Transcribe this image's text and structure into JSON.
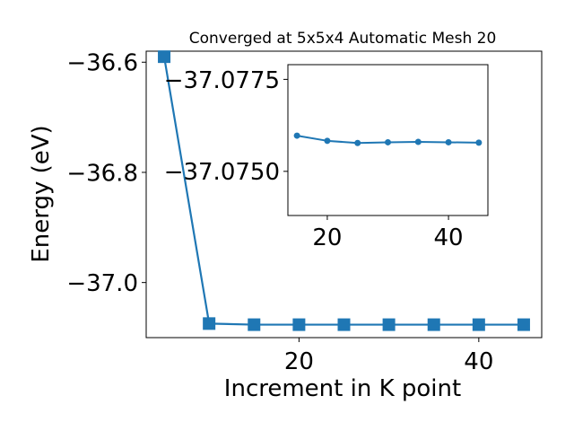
{
  "chart_data": [
    {
      "type": "line",
      "title": "Converged at 5x5x4 Automatic Mesh 20",
      "xlabel": "Increment in K point",
      "ylabel": "Energy (eV)",
      "xlim": [
        3,
        47
      ],
      "ylim": [
        -37.1,
        -36.58
      ],
      "xticks": [
        20,
        40
      ],
      "xtick_labels": [
        "20",
        "40"
      ],
      "yticks": [
        -37.0,
        -36.8,
        -36.6
      ],
      "ytick_labels": [
        "−37.0",
        "−36.8",
        "−36.6"
      ],
      "grid": false,
      "marker": "square",
      "color": "#1f77b4",
      "series": [
        {
          "x": [
            5,
            10,
            15,
            20,
            25,
            30,
            35,
            40,
            45
          ],
          "y": [
            -36.59,
            -37.0745,
            -37.0765,
            -37.0765,
            -37.0765,
            -37.0765,
            -37.0765,
            -37.0765,
            -37.0765
          ]
        }
      ]
    },
    {
      "type": "line",
      "title": "",
      "xlabel": "",
      "ylabel": "",
      "xlim": [
        13.5,
        46.5
      ],
      "ylim": [
        -37.0738,
        -37.0779
      ],
      "xticks": [
        20,
        40
      ],
      "xtick_labels": [
        "20",
        "40"
      ],
      "yticks": [
        -37.075,
        -37.0775
      ],
      "ytick_labels": [
        "−37.0750",
        "−37.0775"
      ],
      "grid": false,
      "marker": "circle",
      "color": "#1f77b4",
      "series": [
        {
          "x": [
            15,
            20,
            25,
            30,
            35,
            40,
            45
          ],
          "y": [
            -37.07597,
            -37.07583,
            -37.07577,
            -37.07579,
            -37.0758,
            -37.07579,
            -37.07578
          ]
        }
      ]
    }
  ]
}
